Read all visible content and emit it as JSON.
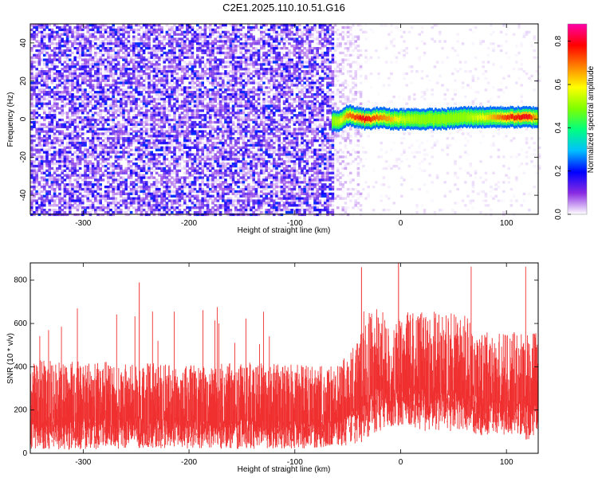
{
  "chart_data": [
    {
      "type": "heatmap",
      "title": "C2E1.2025.110.10.51.G16",
      "xlabel": "Height of straight line (km)",
      "ylabel": "Frequency (Hz)",
      "xlim": [
        -350,
        130
      ],
      "ylim": [
        -50,
        50
      ],
      "xticks": [
        -300,
        -200,
        -100,
        0,
        100
      ],
      "yticks": [
        -40,
        -20,
        0,
        20,
        40
      ],
      "colorbar": {
        "label": "Normalized spectral amplitude",
        "range": [
          0.0,
          0.88
        ],
        "ticks": [
          0.0,
          0.2,
          0.4,
          0.6,
          0.8
        ],
        "colormap": [
          "#ffffff",
          "#8a2be2",
          "#0000ff",
          "#00bfff",
          "#00ff80",
          "#7fff00",
          "#ffff00",
          "#ff8000",
          "#ff0000",
          "#ff00aa"
        ]
      },
      "regions": [
        {
          "x_range": [
            -350,
            -65
          ],
          "description": "broadband noise",
          "amplitude": 0.1
        },
        {
          "x_range": [
            -65,
            -38
          ],
          "description": "sparse noise",
          "amplitude": 0.04
        },
        {
          "x_range": [
            -38,
            130
          ],
          "description": "mostly empty",
          "amplitude": 0.02
        }
      ],
      "ridge": {
        "x": [
          -65,
          -58,
          -50,
          -42,
          -35,
          -28,
          -20,
          -10,
          0,
          20,
          40,
          60,
          80,
          100,
          120,
          130
        ],
        "frequency": [
          -1,
          -1,
          2,
          1,
          0,
          0,
          1,
          0,
          0,
          0,
          0,
          1,
          1,
          1,
          1,
          1
        ],
        "amplitude": [
          0.5,
          0.55,
          0.7,
          0.75,
          0.8,
          0.75,
          0.7,
          0.65,
          0.55,
          0.5,
          0.5,
          0.5,
          0.6,
          0.75,
          0.8,
          0.6
        ]
      },
      "grid": false
    },
    {
      "type": "line",
      "xlabel": "Height of straight line (km)",
      "ylabel": "SNR (10 * v/v)",
      "xlim": [
        -350,
        130
      ],
      "ylim": [
        0,
        880
      ],
      "xticks": [
        -300,
        -200,
        -100,
        0,
        100
      ],
      "yticks": [
        0,
        200,
        400,
        600,
        800
      ],
      "series": [
        {
          "color": "#f03030",
          "x": [
            -350,
            -300,
            -250,
            -200,
            -150,
            -100,
            -60,
            -40,
            -35,
            -20,
            -10,
            0,
            20,
            40,
            60,
            80,
            100,
            120,
            130
          ],
          "y_min": [
            20,
            15,
            25,
            20,
            20,
            20,
            30,
            40,
            60,
            100,
            120,
            130,
            100,
            100,
            100,
            80,
            80,
            60,
            60
          ],
          "y_max": [
            440,
            430,
            420,
            410,
            420,
            410,
            400,
            520,
            660,
            700,
            560,
            640,
            700,
            650,
            640,
            560,
            560,
            560,
            560
          ],
          "peaks": [
            {
              "x": -2,
              "y": 880
            },
            {
              "x": -37,
              "y": 860
            },
            {
              "x": -247,
              "y": 790
            }
          ]
        }
      ],
      "grid": false
    }
  ]
}
